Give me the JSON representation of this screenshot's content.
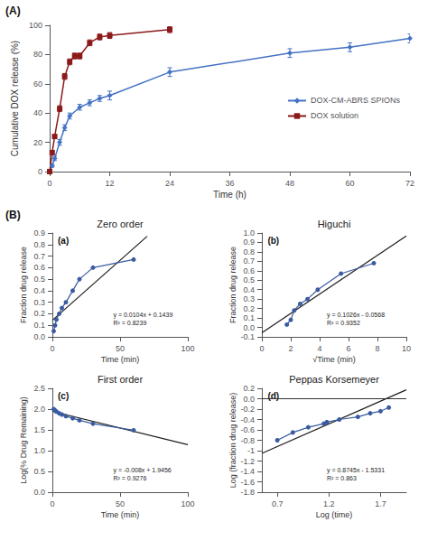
{
  "chart_data": [
    {
      "type": "line",
      "panel_label": "(A)",
      "xlabel": "Time (h)",
      "ylabel": "Cumulative DOX release (%)",
      "xlim": [
        0,
        72
      ],
      "ylim": [
        0,
        100
      ],
      "xticks": [
        0,
        12,
        24,
        36,
        48,
        60,
        72
      ],
      "yticks": [
        0,
        20,
        40,
        60,
        80,
        100
      ],
      "grid": false,
      "legend": "right",
      "series": [
        {
          "name": "DOX-CM-ABRS SPIONs",
          "color": "#4472C4",
          "marker": "diamond",
          "x": [
            0,
            0.5,
            1,
            2,
            3,
            4,
            6,
            8,
            10,
            12,
            24,
            48,
            60,
            72
          ],
          "values": [
            0,
            4,
            9,
            20,
            30,
            38,
            44,
            47,
            50,
            52,
            68,
            81,
            85,
            91
          ],
          "yerr": [
            0,
            1,
            1.5,
            2,
            2,
            2,
            2,
            2,
            2,
            3,
            3,
            3,
            3,
            3
          ]
        },
        {
          "name": "DOX solution",
          "color": "#8B1A1A",
          "marker": "square",
          "x": [
            0,
            0.5,
            1,
            2,
            3,
            4,
            5,
            6,
            8,
            10,
            12,
            24
          ],
          "values": [
            0,
            13,
            24,
            43,
            65,
            75,
            79,
            79,
            88,
            92,
            93,
            97
          ],
          "yerr": [
            0,
            1,
            1,
            2,
            2,
            2,
            2,
            2,
            2,
            2,
            2,
            2
          ]
        }
      ]
    },
    {
      "type": "line",
      "title": "Zero order",
      "panel_label": "(a)",
      "group_label": "(B)",
      "annotations": [
        "y = 0.0104x + 0.1439",
        "R² = 0.8239"
      ],
      "xlabel": "Time (min)",
      "ylabel": "Fraction drug release",
      "xlim": [
        0,
        100
      ],
      "ylim": [
        0,
        0.9
      ],
      "xticks": [
        0,
        50,
        100
      ],
      "yticks": [
        {
          "value": 0,
          "label": "0.0"
        },
        0.1,
        0.2,
        0.3,
        0.4,
        0.5,
        0.6,
        0.7,
        0.8,
        0.9
      ],
      "grid": false,
      "series": [
        {
          "color": "#3A5BA0",
          "marker": "circle",
          "x": [
            1,
            2,
            3,
            5,
            7,
            10,
            15,
            20,
            30,
            60
          ],
          "values": [
            0.05,
            0.1,
            0.15,
            0.2,
            0.25,
            0.3,
            0.4,
            0.5,
            0.6,
            0.67
          ]
        },
        {
          "color": "#1a1a1a",
          "marker": "none",
          "x": [
            0,
            70
          ],
          "values": [
            0.1439,
            0.8719
          ]
        }
      ]
    },
    {
      "type": "line",
      "title": "Higuchi",
      "panel_label": "(b)",
      "annotations": [
        "y = 0.1026x - 0.0568",
        "R² = 0.9352"
      ],
      "xlabel": "√Time (min)",
      "ylabel": "Fraction drug release",
      "xlim": [
        0,
        10
      ],
      "ylim": [
        -0.1,
        1.0
      ],
      "xticks": [
        0,
        2,
        4,
        6,
        8,
        10
      ],
      "yticks": [
        -0.1,
        {
          "value": 0,
          "label": "0.0"
        },
        0.1,
        0.2,
        0.3,
        0.4,
        0.5,
        0.6,
        0.7,
        0.8,
        0.9,
        {
          "value": 1.0,
          "label": "1.0"
        }
      ],
      "grid": false,
      "series": [
        {
          "color": "#3A5BA0",
          "marker": "circle",
          "x": [
            1.73,
            2.0,
            2.24,
            2.65,
            3.16,
            3.87,
            5.48,
            7.75
          ],
          "values": [
            0.03,
            0.08,
            0.18,
            0.25,
            0.3,
            0.4,
            0.57,
            0.68
          ]
        },
        {
          "color": "#1a1a1a",
          "marker": "none",
          "x": [
            0,
            10
          ],
          "values": [
            -0.0568,
            0.9692
          ]
        }
      ]
    },
    {
      "type": "line",
      "title": "First order",
      "panel_label": "(c)",
      "annotations": [
        "y = -0.008x + 1.9456",
        "R² = 0.9276"
      ],
      "xlabel": "Time (min)",
      "ylabel": "Log(% Drug Remaining)",
      "xlim": [
        0,
        100
      ],
      "ylim": [
        0,
        2.5
      ],
      "xticks": [
        0,
        50,
        100
      ],
      "yticks": [
        {
          "value": 0,
          "label": "0.0"
        },
        0.5,
        {
          "value": 1.0,
          "label": "1.0"
        },
        1.5,
        {
          "value": 2.0,
          "label": "2.0"
        },
        2.5
      ],
      "grid": false,
      "series": [
        {
          "color": "#3A5BA0",
          "marker": "circle",
          "x": [
            1,
            2,
            3,
            5,
            7,
            10,
            15,
            20,
            30,
            60
          ],
          "values": [
            2.0,
            1.97,
            1.94,
            1.9,
            1.87,
            1.83,
            1.78,
            1.73,
            1.65,
            1.49
          ]
        },
        {
          "color": "#1a1a1a",
          "marker": "none",
          "x": [
            0,
            100
          ],
          "values": [
            1.9456,
            1.1456
          ]
        }
      ]
    },
    {
      "type": "line",
      "title": "Peppas Korsemeyer",
      "panel_label": "(d)",
      "annotations": [
        "y = 0.8745x - 1.5331",
        "R² = 0.863"
      ],
      "xlabel": "Log (time)",
      "ylabel": "Log (fraction drug release)",
      "xlim": [
        0.55,
        1.95
      ],
      "ylim": [
        -1.8,
        0.2
      ],
      "xticks": [
        0.7,
        1.2,
        1.7
      ],
      "yticks": [
        -1.8,
        -1.6,
        -1.4,
        -1.2,
        -1.0,
        -0.8,
        -0.6,
        -0.4,
        -0.2,
        {
          "value": 0,
          "label": "0.0"
        },
        0.2
      ],
      "grid": false,
      "hline": 0,
      "series": [
        {
          "color": "#3A5BA0",
          "marker": "circle",
          "x": [
            0.7,
            0.85,
            1.0,
            1.15,
            1.18,
            1.3,
            1.48,
            1.6,
            1.7,
            1.78
          ],
          "values": [
            -0.8,
            -0.65,
            -0.55,
            -0.48,
            -0.45,
            -0.4,
            -0.35,
            -0.28,
            -0.24,
            -0.17
          ]
        },
        {
          "color": "#1a1a1a",
          "marker": "none",
          "x": [
            0.55,
            1.95
          ],
          "values": [
            -1.052125,
            0.172175
          ]
        }
      ]
    }
  ]
}
